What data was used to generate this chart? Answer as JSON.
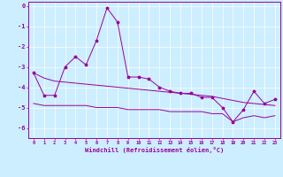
{
  "xlabel": "Windchill (Refroidissement éolien,°C)",
  "background_color": "#cceeff",
  "line_color": "#990099",
  "x_hours": [
    0,
    1,
    2,
    3,
    4,
    5,
    6,
    7,
    8,
    9,
    10,
    11,
    12,
    13,
    14,
    15,
    16,
    17,
    18,
    19,
    20,
    21,
    22,
    23
  ],
  "line1": [
    -3.3,
    -4.4,
    -4.4,
    -3.0,
    -2.5,
    -2.9,
    -1.7,
    -0.1,
    -0.8,
    -3.5,
    -3.5,
    -3.6,
    -4.0,
    -4.2,
    -4.3,
    -4.3,
    -4.5,
    -4.5,
    -5.0,
    -5.7,
    -5.1,
    -4.2,
    -4.8,
    -4.6
  ],
  "line2_lower": [
    -4.8,
    -4.9,
    -4.9,
    -4.9,
    -4.9,
    -4.9,
    -5.0,
    -5.0,
    -5.0,
    -5.1,
    -5.1,
    -5.1,
    -5.1,
    -5.2,
    -5.2,
    -5.2,
    -5.2,
    -5.3,
    -5.3,
    -5.7,
    -5.5,
    -5.4,
    -5.5,
    -5.4
  ],
  "line3_trend": [
    -3.3,
    -3.55,
    -3.7,
    -3.75,
    -3.8,
    -3.85,
    -3.9,
    -3.95,
    -4.0,
    -4.05,
    -4.1,
    -4.15,
    -4.2,
    -4.25,
    -4.3,
    -4.35,
    -4.4,
    -4.45,
    -4.55,
    -4.65,
    -4.75,
    -4.8,
    -4.85,
    -4.9
  ],
  "ylim": [
    -6.5,
    0.2
  ],
  "xlim": [
    -0.5,
    23.5
  ],
  "yticks": [
    0,
    -1,
    -2,
    -3,
    -4,
    -5,
    -6
  ],
  "ytick_labels": [
    "0",
    "-1",
    "-2",
    "-3",
    "-4",
    "-5",
    "-6"
  ]
}
